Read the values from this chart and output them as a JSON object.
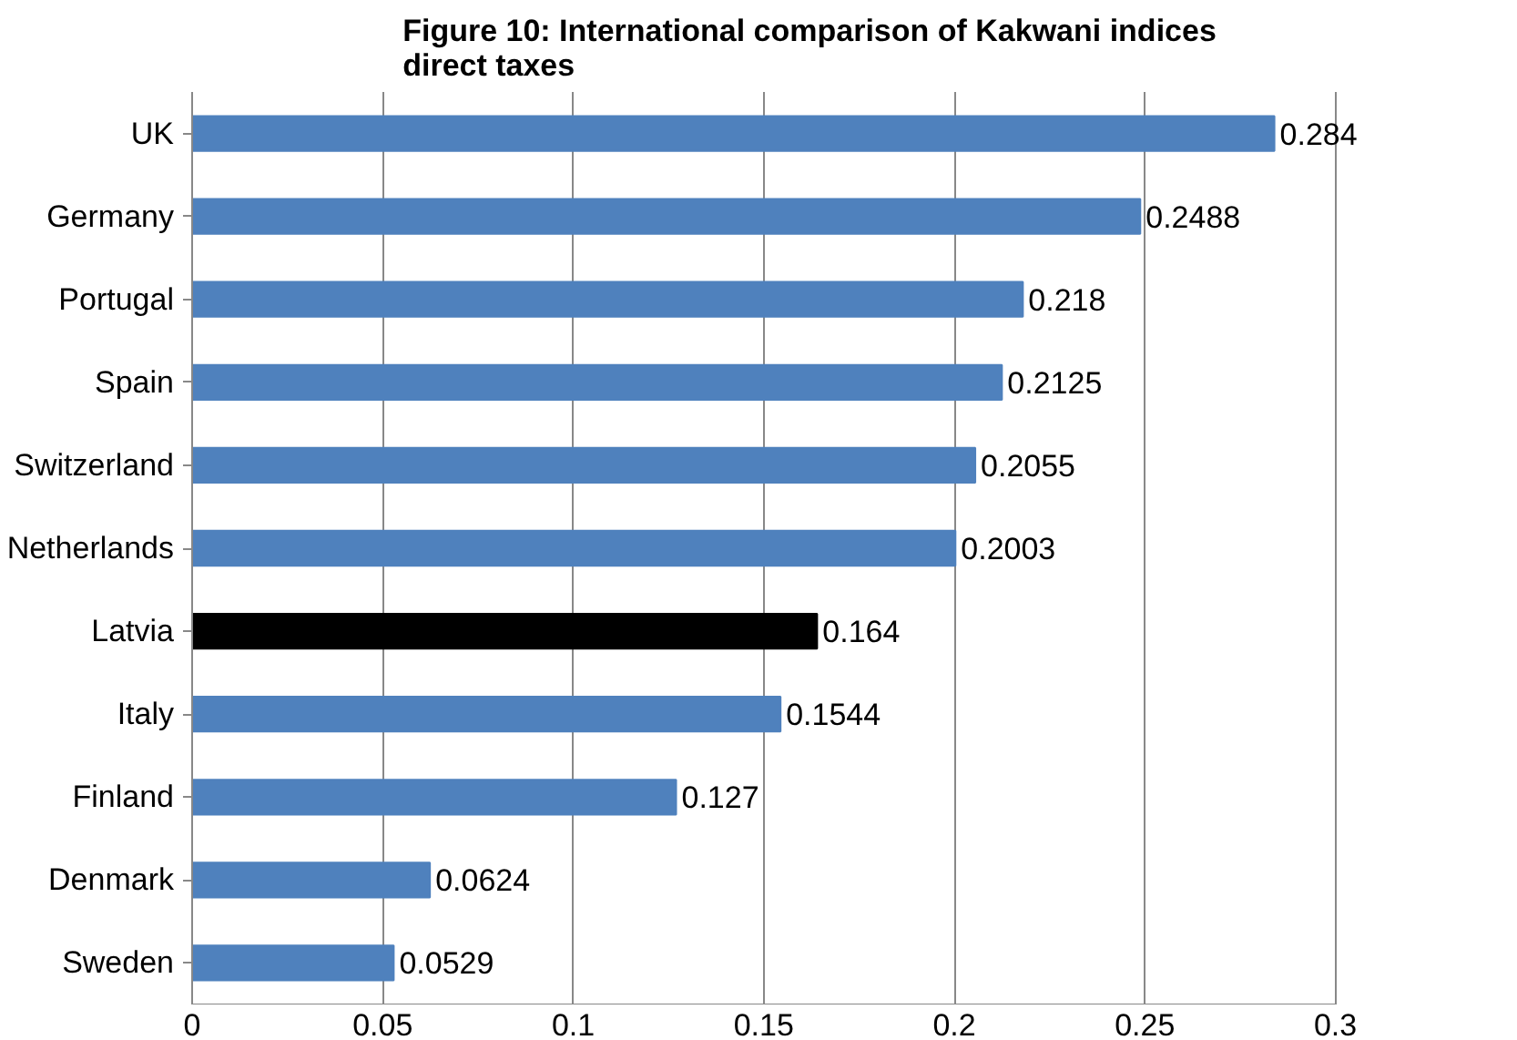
{
  "chart_data": {
    "type": "bar",
    "orientation": "horizontal",
    "title": "Figure 10: International comparison of Kakwani indices\ndirect taxes",
    "categories": [
      "UK",
      "Germany",
      "Portugal",
      "Spain",
      "Switzerland",
      "Netherlands",
      "Latvia",
      "Italy",
      "Finland",
      "Denmark",
      "Sweden"
    ],
    "values": [
      0.284,
      0.2488,
      0.218,
      0.2125,
      0.2055,
      0.2003,
      0.164,
      0.1544,
      0.127,
      0.0624,
      0.0529
    ],
    "colors": [
      "#4f81bd",
      "#4f81bd",
      "#4f81bd",
      "#4f81bd",
      "#4f81bd",
      "#4f81bd",
      "#000000",
      "#4f81bd",
      "#4f81bd",
      "#4f81bd",
      "#4f81bd"
    ],
    "xlim": [
      0,
      0.3
    ],
    "xticks": [
      0,
      0.05,
      0.1,
      0.15,
      0.2,
      0.25,
      0.3
    ],
    "grid": "x",
    "data_labels": true
  }
}
